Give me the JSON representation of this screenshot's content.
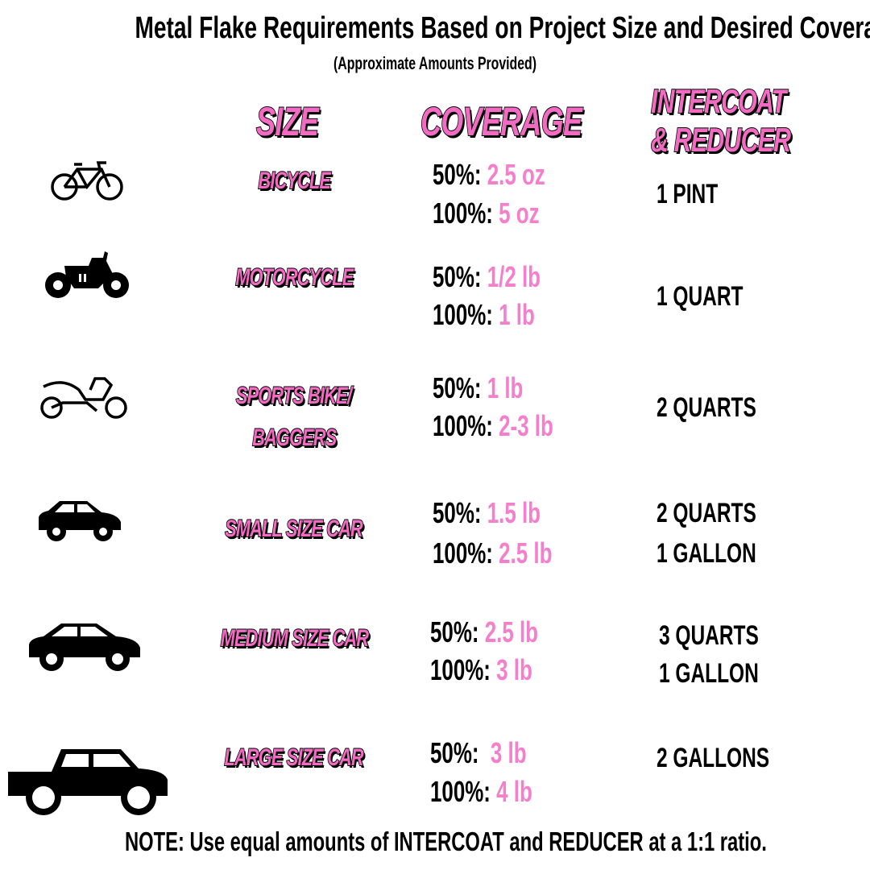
{
  "title": "Metal Flake Requirements Based on Project Size and Desired Coverage",
  "subtitle": "(Approximate Amounts Provided)",
  "headers": {
    "size": "SIZE",
    "coverage": "COVERAGE",
    "intercoat_line1": "INTERCOAT",
    "intercoat_line2": "& REDUCER"
  },
  "colors": {
    "accent": "#f26bc3",
    "value": "#f47fcb"
  },
  "rows": [
    {
      "icon": "bicycle-icon",
      "size": "BICYCLE",
      "size2": "",
      "c50_label": "50%:",
      "c50": "2.5 oz",
      "c100_label": "100%:",
      "c100": "5 oz",
      "ic1": "1 PINT",
      "ic2": ""
    },
    {
      "icon": "motorcycle-icon",
      "size": "MOTORCYCLE",
      "size2": "",
      "c50_label": "50%:",
      "c50": "1/2 lb",
      "c100_label": "100%:",
      "c100": "1 lb",
      "ic1": "1 QUART",
      "ic2": ""
    },
    {
      "icon": "sports-bike-icon",
      "size": "SPORTS BIKE/",
      "size2": "BAGGERS",
      "c50_label": "50%:",
      "c50": "1 lb",
      "c100_label": "100%:",
      "c100": "2-3 lb",
      "ic1": "2 QUARTS",
      "ic2": ""
    },
    {
      "icon": "small-car-icon",
      "size": "SMALL SIZE CAR",
      "size2": "",
      "c50_label": "50%:",
      "c50": "1.5 lb",
      "c100_label": "100%:",
      "c100": "2.5 lb",
      "ic1": "2 QUARTS",
      "ic2": "1 GALLON"
    },
    {
      "icon": "medium-car-icon",
      "size": "MEDIUM SIZE CAR",
      "size2": "",
      "c50_label": "50%:",
      "c50": "2.5 lb",
      "c100_label": "100%:",
      "c100": "3 lb",
      "ic1": "3 QUARTS",
      "ic2": "1 GALLON"
    },
    {
      "icon": "pickup-truck-icon",
      "size": "LARGE SIZE CAR",
      "size2": "",
      "c50_label": "50%:",
      "c50": "3 lb",
      "c100_label": "100%:",
      "c100": "4 lb",
      "ic1": "2 GALLONS",
      "ic2": ""
    }
  ],
  "note": "NOTE: Use equal amounts of INTERCOAT and REDUCER at a 1:1 ratio."
}
